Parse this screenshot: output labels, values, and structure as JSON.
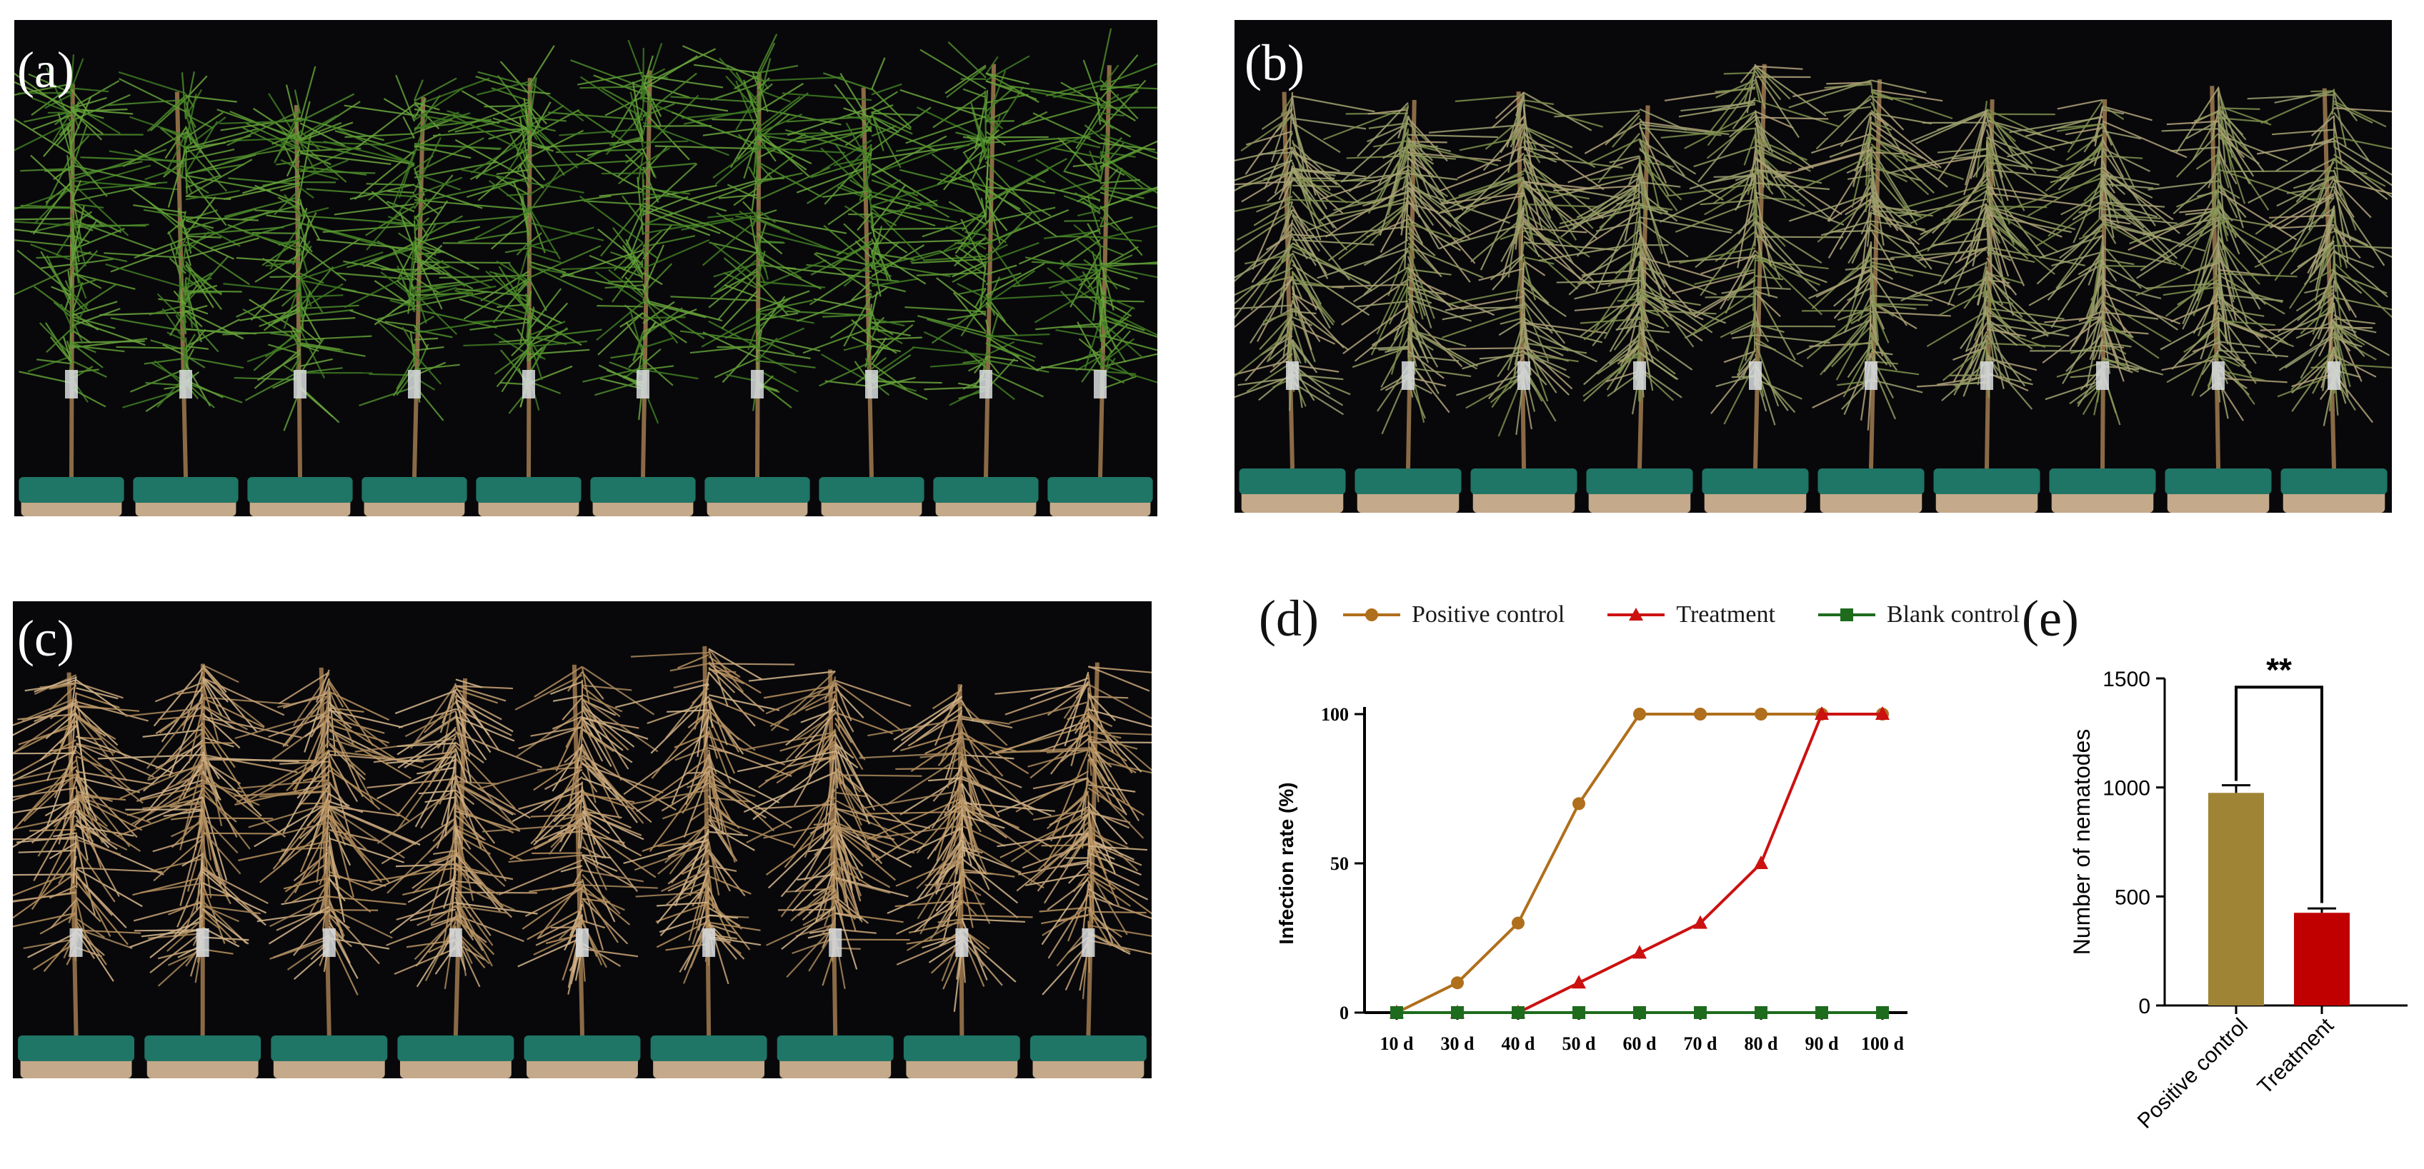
{
  "panels": {
    "a": {
      "label": "(a)"
    },
    "b": {
      "label": "(b)"
    },
    "c": {
      "label": "(c)"
    },
    "d": {
      "label": "(d)"
    },
    "e": {
      "label": "(e)"
    }
  },
  "colors": {
    "positive": "#b06f1c",
    "treatment": "#cc1111",
    "blank": "#1e6b1e",
    "bar_positive": "#a08436",
    "bar_treatment": "#c00000",
    "healthy_foliage": "#4d8a2a",
    "wilting_foliage": "#9a9f6e",
    "dead_foliage": "#c8a477",
    "pot": "#1f7566"
  },
  "chart_data": [
    {
      "type": "line",
      "panel": "d",
      "title": "",
      "xlabel": "",
      "ylabel": "Infection rate (%)",
      "categories": [
        "10 d",
        "30 d",
        "40 d",
        "50 d",
        "60 d",
        "70 d",
        "80 d",
        "90 d",
        "100 d"
      ],
      "ylim": [
        0,
        100
      ],
      "yticks": [
        0,
        50,
        100
      ],
      "legend_position": "top",
      "series": [
        {
          "name": "Positive control",
          "marker": "circle",
          "values": [
            0,
            10,
            30,
            70,
            100,
            100,
            100,
            100,
            100
          ]
        },
        {
          "name": "Treatment",
          "marker": "triangle",
          "values": [
            0,
            0,
            0,
            10,
            20,
            30,
            50,
            100,
            100
          ]
        },
        {
          "name": "Blank control",
          "marker": "square",
          "values": [
            0,
            0,
            0,
            0,
            0,
            0,
            0,
            0,
            0
          ]
        }
      ]
    },
    {
      "type": "bar",
      "panel": "e",
      "title": "",
      "xlabel": "",
      "ylabel": "Number of nematodes",
      "categories": [
        "Positive control",
        "Treatment"
      ],
      "values": [
        975,
        425
      ],
      "errors": [
        35,
        20
      ],
      "ylim": [
        0,
        1500
      ],
      "yticks": [
        0,
        500,
        1000,
        1500
      ],
      "significance": "**"
    }
  ]
}
